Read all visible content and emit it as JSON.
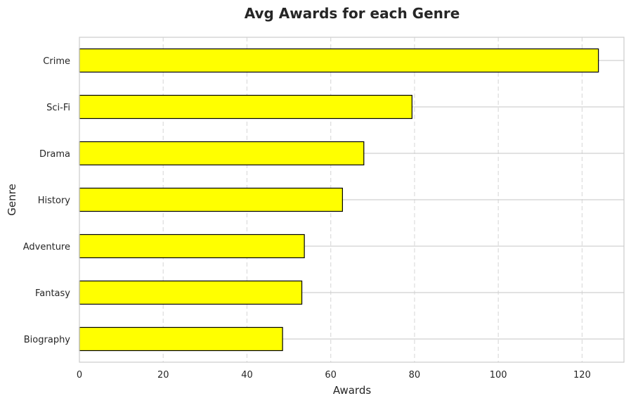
{
  "chart_data": {
    "type": "bar",
    "orientation": "horizontal",
    "title": "Avg Awards for each Genre",
    "xlabel": "Awards",
    "ylabel": "Genre",
    "categories": [
      "Biography",
      "Fantasy",
      "Adventure",
      "History",
      "Drama",
      "Sci-Fi",
      "Crime"
    ],
    "values": [
      48.5,
      53.1,
      53.7,
      62.8,
      67.9,
      79.4,
      123.9
    ],
    "xlim": [
      0,
      130
    ],
    "xticks": [
      0,
      20,
      40,
      60,
      80,
      100,
      120
    ],
    "grid": "x dashed, y solid",
    "bar_color": "#ffff00",
    "bar_edge_color": "#000000"
  }
}
